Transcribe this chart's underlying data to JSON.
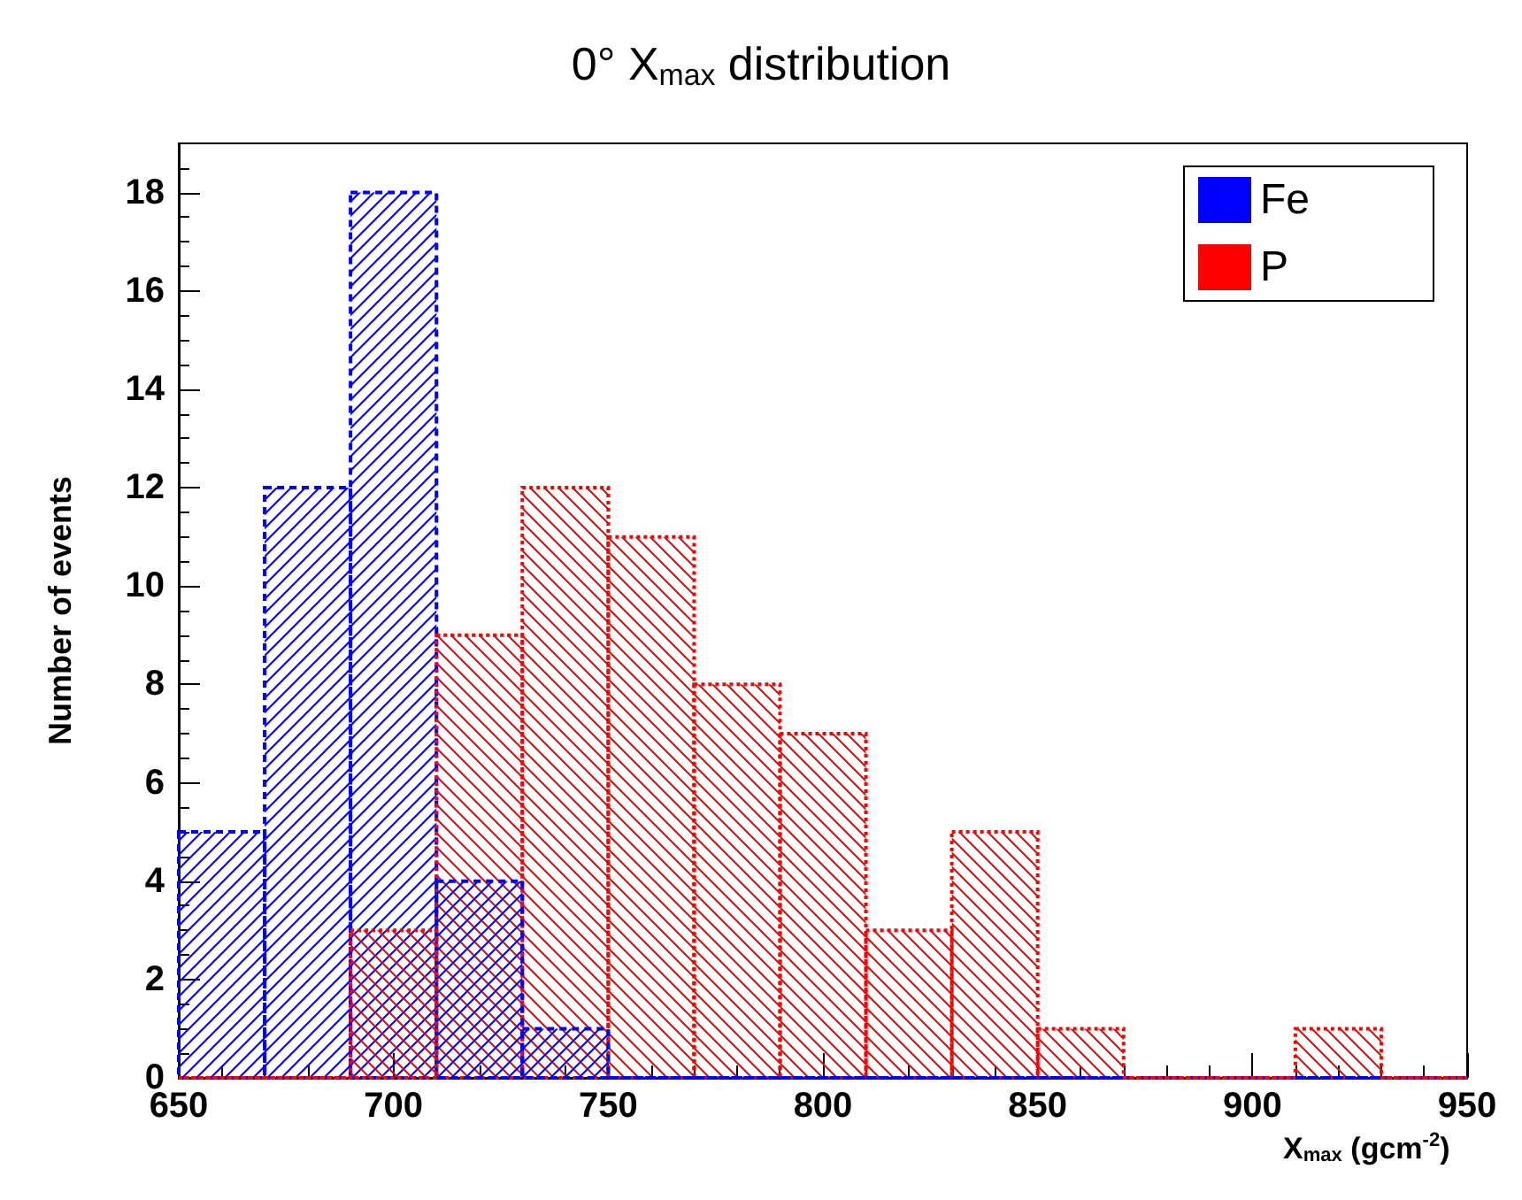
{
  "chart_data": {
    "type": "histogram",
    "title": "0° X$_{max}$ distribution",
    "xlabel": "X$_{max}$ (gcm$^{-2}$)",
    "ylabel": "Number of events",
    "bins": [
      650,
      670,
      690,
      710,
      730,
      750,
      770,
      790,
      810,
      830,
      850,
      870,
      890,
      910,
      930,
      950
    ],
    "series": [
      {
        "name": "Fe",
        "color": "#0000ff",
        "line_style": "dashed",
        "values": [
          5,
          12,
          18,
          4,
          1,
          0,
          0,
          0,
          0,
          0,
          0,
          0,
          0,
          0,
          0
        ]
      },
      {
        "name": "P",
        "color": "#ff0000",
        "line_style": "dotted",
        "values": [
          0,
          0,
          3,
          9,
          12,
          11,
          8,
          7,
          3,
          5,
          1,
          0,
          0,
          1,
          0
        ]
      }
    ],
    "xlim": [
      650,
      950
    ],
    "xticks": [
      650,
      700,
      750,
      800,
      850,
      900,
      950
    ],
    "ylim": [
      0,
      19
    ],
    "yticks": [
      0,
      2,
      4,
      6,
      8,
      10,
      12,
      14,
      16,
      18
    ],
    "grid": false,
    "legend": "top right"
  }
}
